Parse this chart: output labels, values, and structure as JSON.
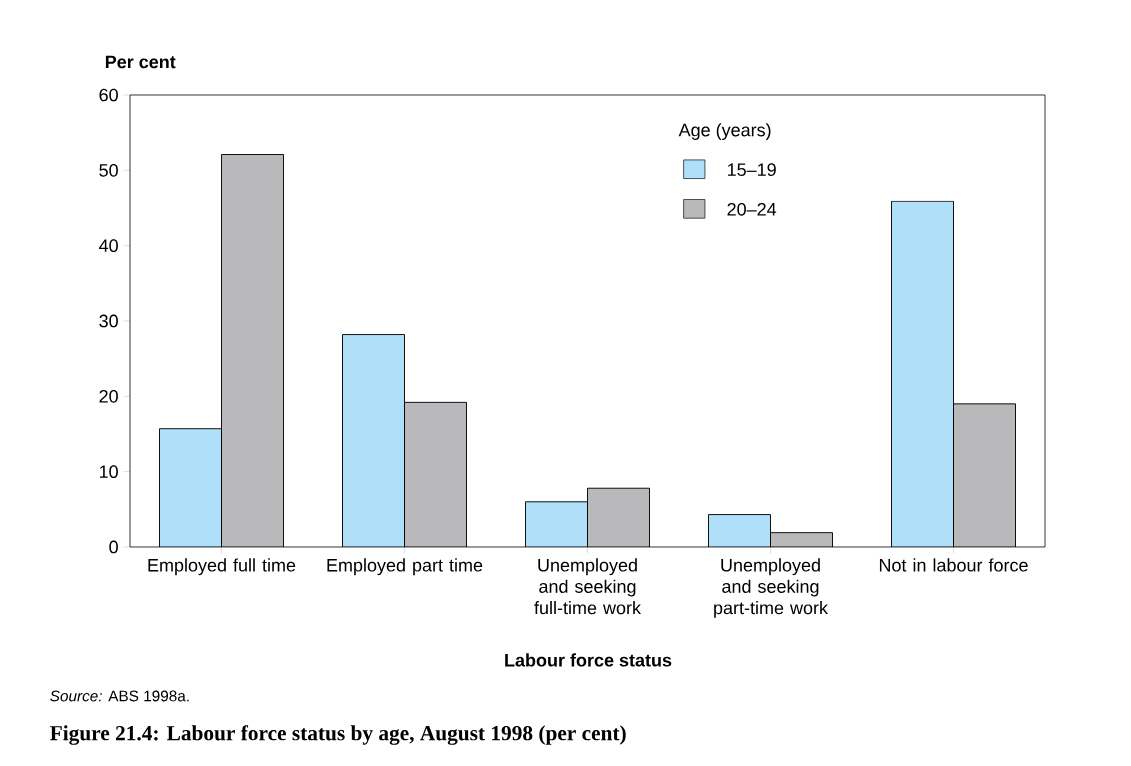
{
  "chart_data": {
    "type": "bar",
    "title": "Figure 21.4: Labour force status by age, August 1998 (per cent)",
    "ylabel": "Per cent",
    "xlabel": "Labour force status",
    "categories": [
      "Employed full time",
      "Employed part time",
      "Unemployed and seeking full-time work",
      "Unemployed and seeking part-time work",
      "Not in labour force"
    ],
    "series": [
      {
        "name": "15–19",
        "color": "#b0dffa",
        "values": [
          15.7,
          28.2,
          6.0,
          4.3,
          45.9
        ]
      },
      {
        "name": "20–24",
        "color": "#b9b9bb",
        "values": [
          52.1,
          19.2,
          7.8,
          1.9,
          19.0
        ]
      }
    ],
    "ylim": [
      0,
      60
    ],
    "yticks": [
      0,
      10,
      20,
      30,
      40,
      50,
      60
    ],
    "legend_title": "Age (years)",
    "legend": "top right",
    "grid": false,
    "annotations": [
      "*Source:* ABS 1998a."
    ]
  }
}
